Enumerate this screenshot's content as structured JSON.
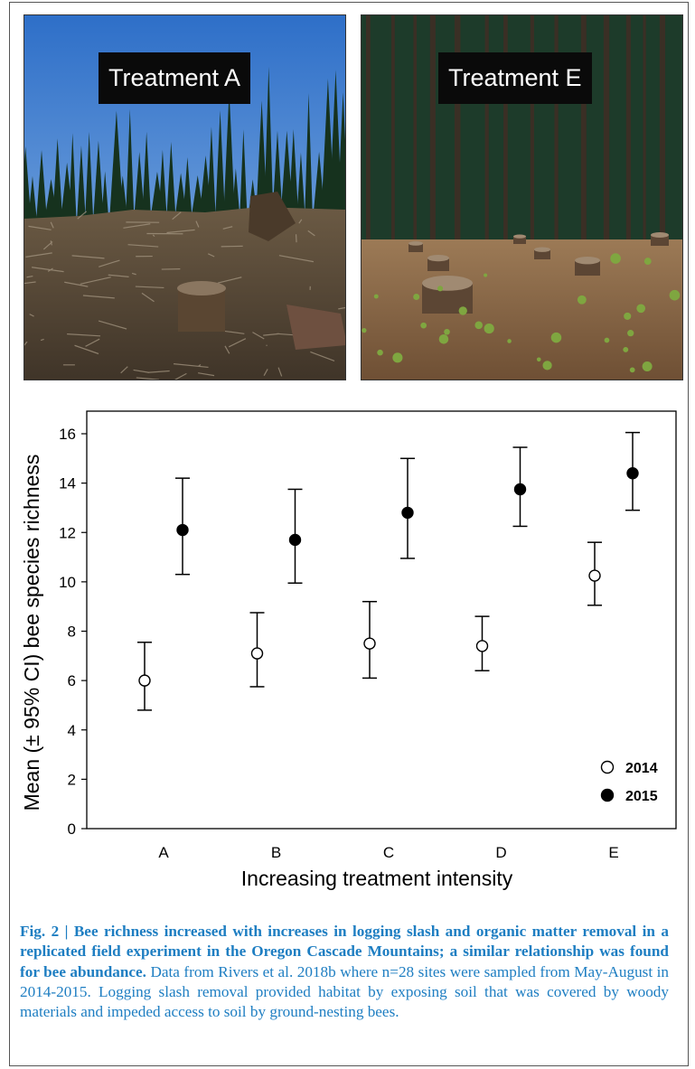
{
  "photos": {
    "left": {
      "label": "Treatment A"
    },
    "right": {
      "label": "Treatment E"
    }
  },
  "chart_data": {
    "type": "scatter",
    "title": "",
    "xlabel": "Increasing treatment intensity",
    "ylabel": "Mean (± 95% CI) bee species richness",
    "categories": [
      "A",
      "B",
      "C",
      "D",
      "E"
    ],
    "ylim": [
      0,
      16
    ],
    "yticks": [
      0,
      2,
      4,
      6,
      8,
      10,
      12,
      14,
      16
    ],
    "grid": false,
    "legend_position": "bottom-right",
    "series": [
      {
        "name": "2014",
        "marker": "open-circle",
        "color": "#000000",
        "values": [
          6.0,
          7.1,
          7.5,
          7.4,
          10.25
        ],
        "ci_low": [
          4.8,
          5.75,
          6.1,
          6.4,
          9.05
        ],
        "ci_high": [
          7.55,
          8.75,
          9.2,
          8.6,
          11.6
        ]
      },
      {
        "name": "2015",
        "marker": "filled-circle",
        "color": "#000000",
        "values": [
          12.1,
          11.7,
          12.8,
          13.75,
          14.4
        ],
        "ci_low": [
          10.3,
          9.95,
          10.95,
          12.25,
          12.9
        ],
        "ci_high": [
          14.2,
          13.75,
          15.0,
          15.45,
          16.05
        ]
      }
    ]
  },
  "caption": {
    "bold": "Fig. 2 | Bee richness increased with increases in logging slash and organic matter removal in a replicated field experiment in the Oregon Cascade Mountains; a similar relationship was found for bee abundance.",
    "text": " Data from Rivers et al. 2018b where n=28 sites were sampled from May-August in 2014-2015. Logging slash removal provided habitat by exposing soil that was covered by woody materials and impeded access to soil by ground-nesting bees."
  }
}
